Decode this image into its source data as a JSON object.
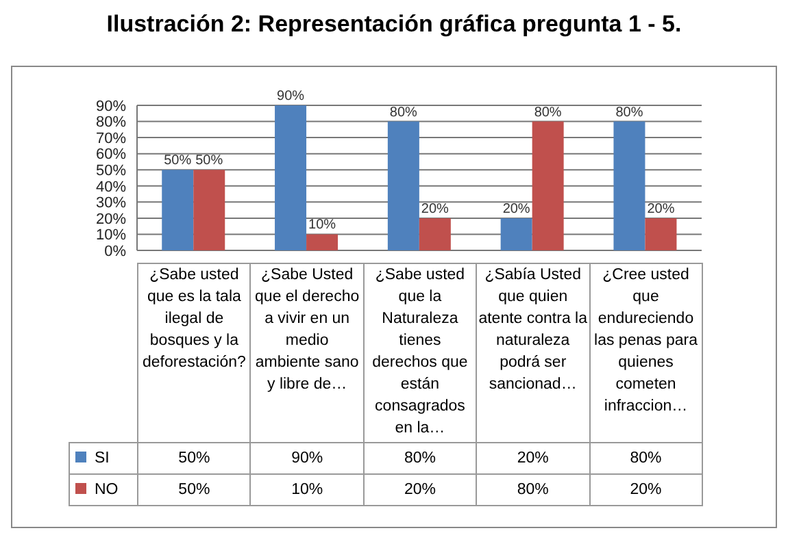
{
  "chart_data": {
    "type": "bar",
    "title": "Ilustración 2: Representación gráfica pregunta 1 - 5.",
    "categories": [
      "¿Sabe usted que es la tala ilegal de bosques y la deforestación?",
      "¿Sabe Usted que el derecho a vivir en un medio ambiente sano y libre de…",
      "¿Sabe usted que la Naturaleza tienes derechos que están consagrados en la…",
      "¿Sabía Usted que quien atente contra la naturaleza podrá ser sancionad…",
      "¿Cree usted que endureciendo las penas para quienes cometen infraccion…"
    ],
    "series": [
      {
        "name": "SI",
        "color": "#4f81bd",
        "values": [
          50,
          90,
          80,
          20,
          80
        ],
        "value_labels": [
          "50%",
          "90%",
          "80%",
          "20%",
          "80%"
        ]
      },
      {
        "name": "NO",
        "color": "#c0504d",
        "values": [
          50,
          10,
          20,
          80,
          20
        ],
        "value_labels": [
          "50%",
          "10%",
          "20%",
          "80%",
          "20%"
        ]
      }
    ],
    "ylim": [
      0,
      90
    ],
    "yticks": [
      {
        "value": 0,
        "label": "0%"
      },
      {
        "value": 10,
        "label": "10%"
      },
      {
        "value": 20,
        "label": "20%"
      },
      {
        "value": 30,
        "label": "30%"
      },
      {
        "value": 40,
        "label": "40%"
      },
      {
        "value": 50,
        "label": "50%"
      },
      {
        "value": 60,
        "label": "60%"
      },
      {
        "value": 70,
        "label": "70%"
      },
      {
        "value": 80,
        "label": "80%"
      },
      {
        "value": 90,
        "label": "90%"
      }
    ],
    "grid": "y",
    "legend": "bottom"
  }
}
